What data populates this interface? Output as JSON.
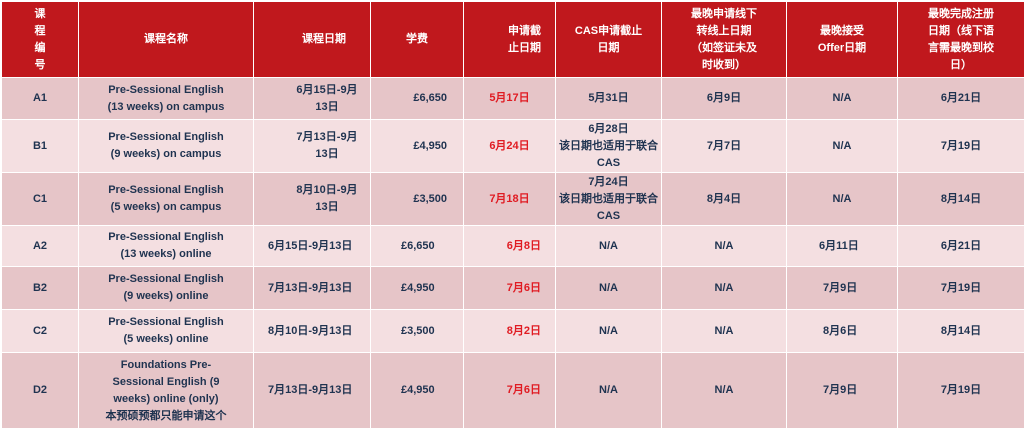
{
  "headers": [
    "课程编号",
    "课程名称",
    "课程日期",
    "学费",
    "申请截止日期",
    "CAS申请截止日期",
    "最晚申请线下转线上日期（如签证未及时收到）",
    "最晚接受Offer日期",
    "最晚完成注册日期（线下语言需最晚到校日）"
  ],
  "header_lines": {
    "code": [
      "课",
      "程",
      "编",
      "号"
    ],
    "name": [
      "课程名称"
    ],
    "dates": [
      "课程日期"
    ],
    "fee": [
      "学费"
    ],
    "deadline": [
      "申请截",
      "止日期"
    ],
    "cas": [
      "CAS申请截止",
      "日期"
    ],
    "switch": [
      "最晚申请线下",
      "转线上日期",
      "（如签证未及",
      "时收到）"
    ],
    "offer": [
      "最晚接受",
      "Offer日期"
    ],
    "register": [
      "最晚完成注册",
      "日期（线下语",
      "言需最晚到校",
      "日）"
    ]
  },
  "rows": [
    {
      "code": "A1",
      "name_lines": [
        "Pre-Sessional English",
        "(13 weeks) on campus"
      ],
      "date_lines": [
        "6月15日-9月",
        "13日"
      ],
      "fee": "£6,650",
      "deadline": "5月17日",
      "cas_lines": [
        "5月31日"
      ],
      "switch": "6月9日",
      "offer": "N/A",
      "register": "6月21日"
    },
    {
      "code": "B1",
      "name_lines": [
        "Pre-Sessional English",
        "(9 weeks) on campus"
      ],
      "date_lines": [
        "7月13日-9月",
        "13日"
      ],
      "fee": "£4,950",
      "deadline": "6月24日",
      "cas_lines": [
        "6月28日",
        "该日期也适用于联合",
        "CAS"
      ],
      "switch": "7月7日",
      "offer": "N/A",
      "register": "7月19日"
    },
    {
      "code": "C1",
      "name_lines": [
        "Pre-Sessional English",
        "(5 weeks) on campus"
      ],
      "date_lines": [
        "8月10日-9月",
        "13日"
      ],
      "fee": "£3,500",
      "deadline": "7月18日",
      "cas_lines": [
        "7月24日",
        "该日期也适用于联合",
        "CAS"
      ],
      "switch": "8月4日",
      "offer": "N/A",
      "register": "8月14日"
    },
    {
      "code": "A2",
      "name_lines": [
        "Pre-Sessional English",
        "(13 weeks) online"
      ],
      "date_lines": [
        "6月15日-9月13日"
      ],
      "fee": "£6,650",
      "deadline": "6月8日",
      "cas_lines": [
        "N/A"
      ],
      "switch": "N/A",
      "offer": "6月11日",
      "register": "6月21日"
    },
    {
      "code": "B2",
      "name_lines": [
        "Pre-Sessional English",
        "(9 weeks) online"
      ],
      "date_lines": [
        "7月13日-9月13日"
      ],
      "fee": "£4,950",
      "deadline": "7月6日",
      "cas_lines": [
        "N/A"
      ],
      "switch": "N/A",
      "offer": "7月9日",
      "register": "7月19日"
    },
    {
      "code": "C2",
      "name_lines": [
        "Pre-Sessional English",
        "(5 weeks) online"
      ],
      "date_lines": [
        "8月10日-9月13日"
      ],
      "fee": "£3,500",
      "deadline": "8月2日",
      "cas_lines": [
        "N/A"
      ],
      "switch": "N/A",
      "offer": "8月6日",
      "register": "8月14日"
    },
    {
      "code": "D2",
      "name_lines": [
        "Foundations Pre-",
        "Sessional English  (9",
        "weeks) online (only)",
        "本预硕预都只能申请这个"
      ],
      "date_lines": [
        "7月13日-9月13日"
      ],
      "fee": "£4,950",
      "deadline": "7月6日",
      "cas_lines": [
        "N/A"
      ],
      "switch": "N/A",
      "offer": "7月9日",
      "register": "7月19日"
    }
  ],
  "colors": {
    "header_bg": "#c0181d",
    "row_dark": "#e6c5c8",
    "row_light": "#f4dfe1",
    "body_text": "#1f3350",
    "deadline_text": "#e01b22"
  }
}
